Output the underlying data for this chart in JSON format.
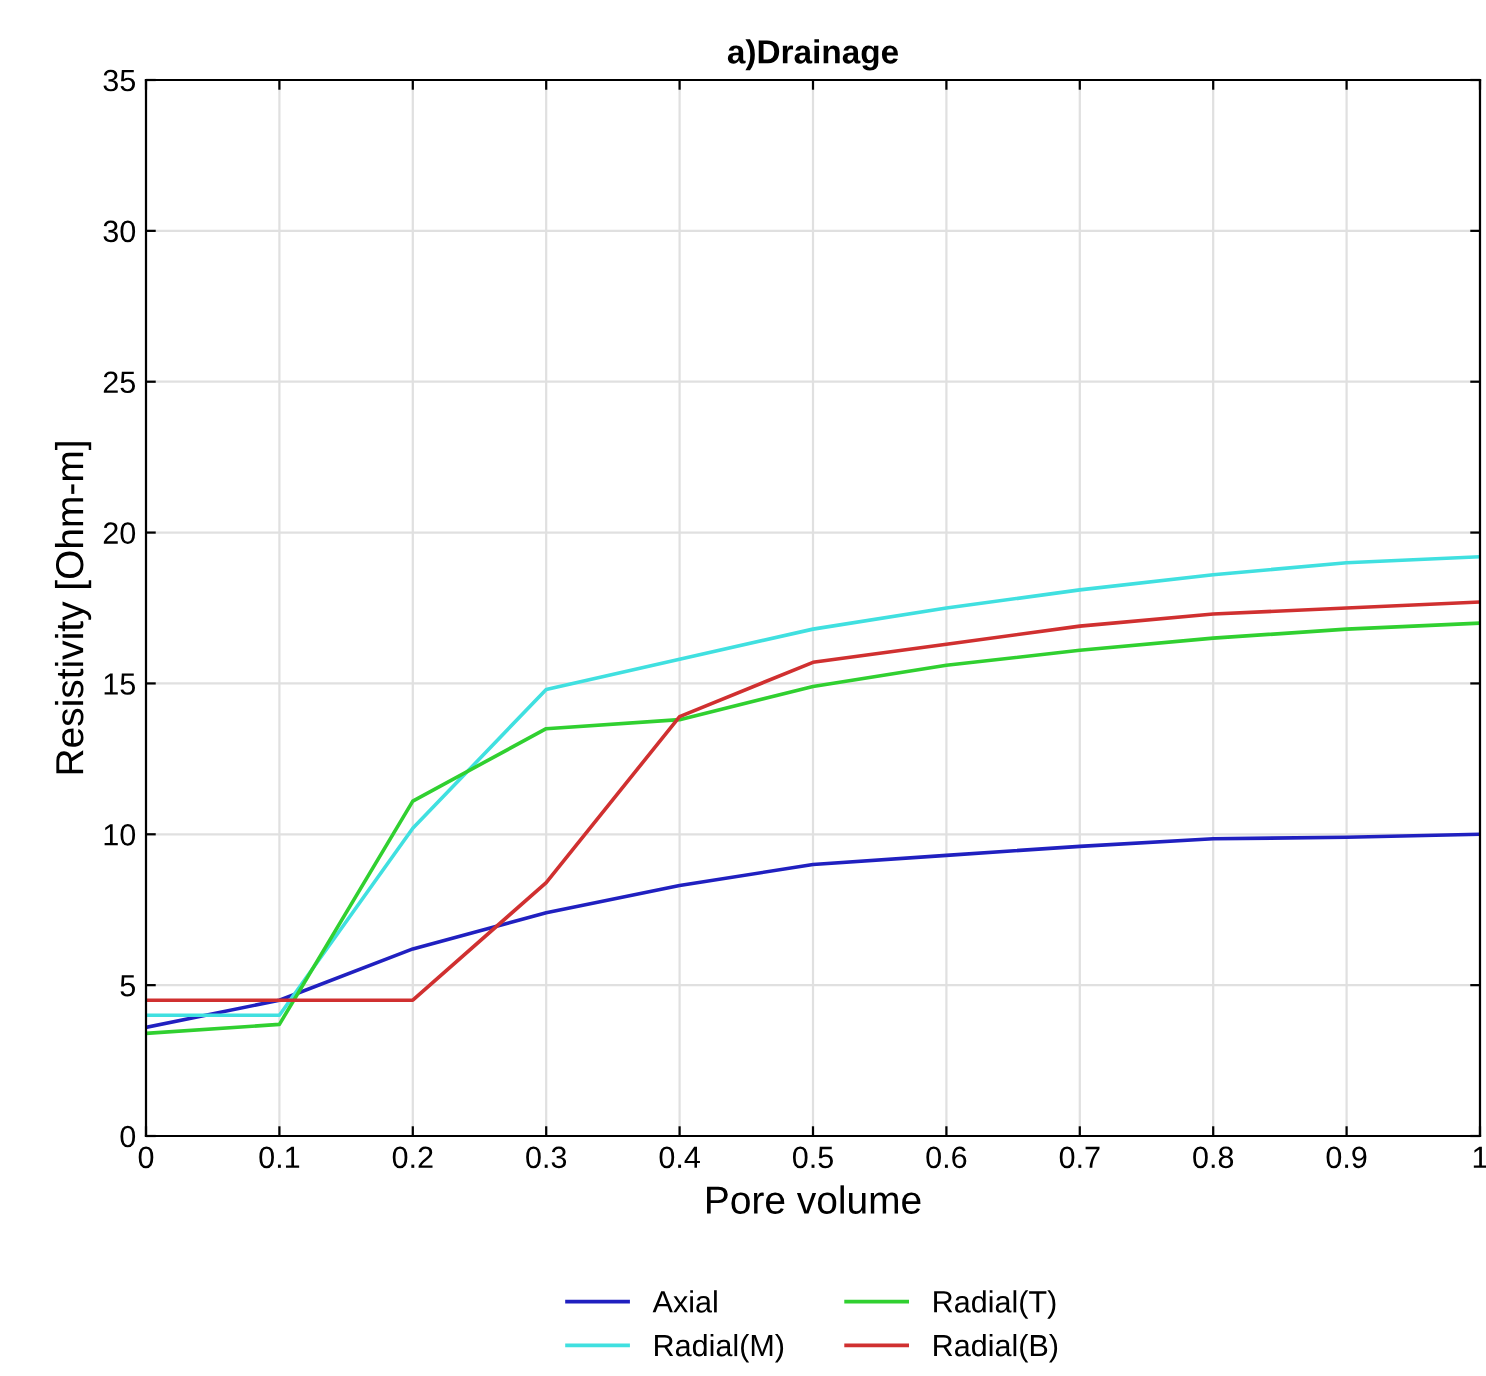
{
  "chart_data": {
    "type": "line",
    "title": "a)Drainage",
    "xlabel": "Pore volume",
    "ylabel": "Resistivity [Ohm-m]",
    "x": [
      0,
      0.1,
      0.2,
      0.3,
      0.4,
      0.5,
      0.6,
      0.7,
      0.8,
      0.9,
      1
    ],
    "series": [
      {
        "name": "Axial",
        "color": "#2020c0",
        "values": [
          3.6,
          4.5,
          6.2,
          7.4,
          8.3,
          9.0,
          9.3,
          9.6,
          9.85,
          9.9,
          10.0
        ]
      },
      {
        "name": "Radial(M)",
        "color": "#40e0e0",
        "values": [
          4.0,
          4.0,
          10.2,
          14.8,
          15.8,
          16.8,
          17.5,
          18.1,
          18.6,
          19.0,
          19.2
        ]
      },
      {
        "name": "Radial(T)",
        "color": "#30d030",
        "values": [
          3.4,
          3.7,
          11.1,
          13.5,
          13.8,
          14.9,
          15.6,
          16.1,
          16.5,
          16.8,
          17.0
        ]
      },
      {
        "name": "Radial(B)",
        "color": "#d03030",
        "values": [
          4.5,
          4.5,
          4.5,
          8.4,
          13.9,
          15.7,
          16.3,
          16.9,
          17.3,
          17.5,
          17.7
        ]
      }
    ],
    "xlim": [
      0,
      1
    ],
    "xticks": [
      0,
      0.1,
      0.2,
      0.3,
      0.4,
      0.5,
      0.6,
      0.7,
      0.8,
      0.9,
      1
    ],
    "ylim": [
      0,
      35
    ],
    "yticks": [
      0,
      5,
      10,
      15,
      20,
      25,
      30,
      35
    ],
    "grid": true,
    "legend": "bottom",
    "marker": "none",
    "line_style": "solid"
  }
}
